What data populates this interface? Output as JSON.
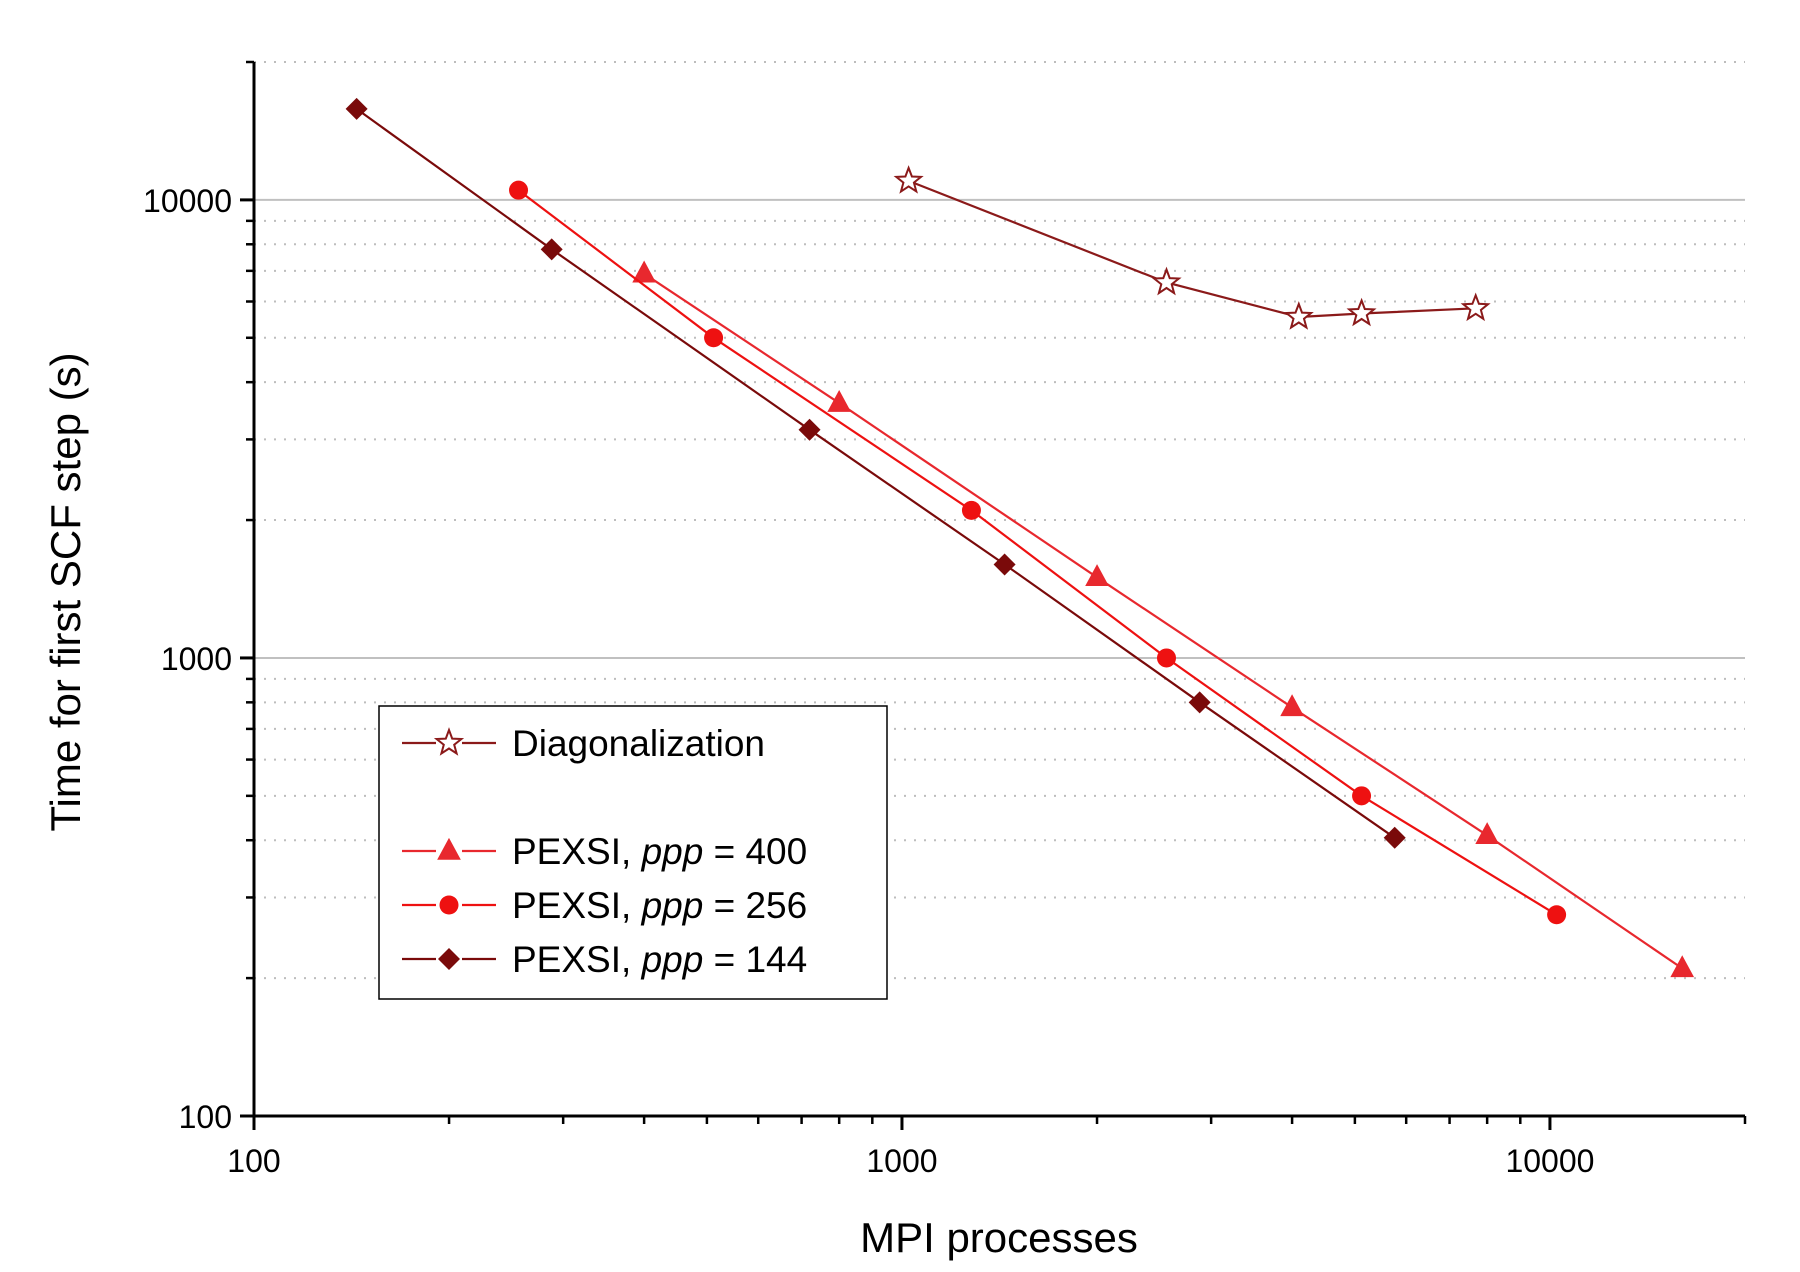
{
  "chart_data": {
    "type": "line",
    "title": "",
    "xlabel": "MPI processes",
    "ylabel": "Time for first SCF step (s)",
    "xscale": "log",
    "yscale": "log",
    "xlim": [
      100,
      20000
    ],
    "ylim": [
      100,
      20000
    ],
    "xticks": [
      100,
      1000,
      10000
    ],
    "xtick_labels": [
      "100",
      "1000",
      "10000"
    ],
    "yticks": [
      100,
      1000,
      10000
    ],
    "ytick_labels": [
      "100",
      "1000",
      "10000"
    ],
    "grid": "major solid, minor dotted (y-axis)",
    "legend_position": "lower-left",
    "series": [
      {
        "name": "Diagonalization",
        "label_prefix": "Diagonalization",
        "label_italic": "",
        "label_suffix": "",
        "marker": "open-star",
        "color": "#8b1a1a",
        "x": [
          1024,
          2560,
          4096,
          5120,
          7680
        ],
        "y": [
          11000,
          6600,
          5550,
          5650,
          5800
        ]
      },
      {
        "name": "PEXSI, ppp = 400",
        "label_prefix": "PEXSI, ",
        "label_italic": "ppp",
        "label_suffix": " = 400",
        "marker": "filled-triangle",
        "color": "#e8282e",
        "x": [
          400,
          800,
          2000,
          4000,
          8000,
          16000
        ],
        "y": [
          6900,
          3600,
          1500,
          780,
          410,
          210
        ]
      },
      {
        "name": "PEXSI, ppp = 256",
        "label_prefix": "PEXSI, ",
        "label_italic": "ppp",
        "label_suffix": " = 256",
        "marker": "filled-circle",
        "color": "#ee1111",
        "x": [
          256,
          512,
          1280,
          2560,
          5120,
          10240
        ],
        "y": [
          10500,
          5000,
          2100,
          1000,
          500,
          275
        ]
      },
      {
        "name": "PEXSI, ppp = 144",
        "label_prefix": "PEXSI, ",
        "label_italic": "ppp",
        "label_suffix": " = 144",
        "marker": "filled-diamond",
        "color": "#7a0a0a",
        "x": [
          144,
          288,
          720,
          1440,
          2880,
          5760
        ],
        "y": [
          15800,
          7800,
          3150,
          1600,
          800,
          405
        ]
      }
    ]
  }
}
